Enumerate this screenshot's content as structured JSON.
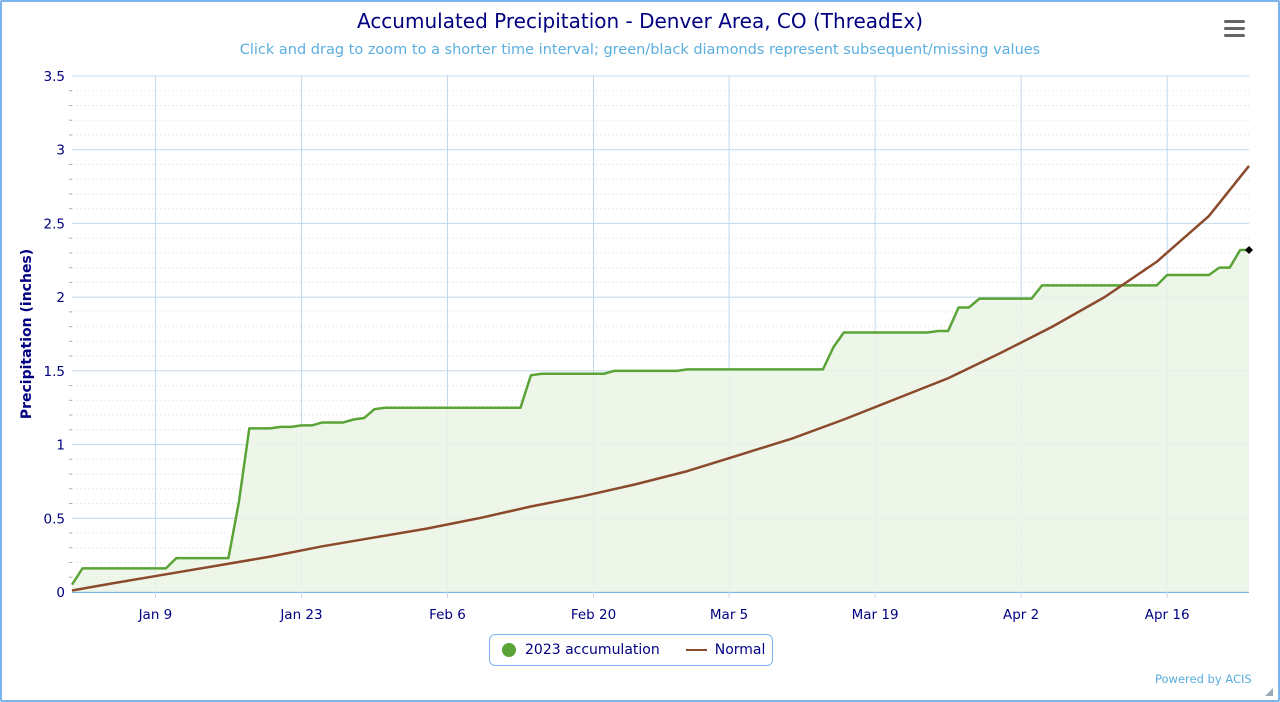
{
  "chart": {
    "title": "Accumulated Precipitation - Denver Area, CO (ThreadEx)",
    "subtitle": "Click and drag to zoom to a shorter time interval; green/black diamonds represent subsequent/missing values",
    "menu_icon": "hamburger-icon",
    "credits": "Powered by ACIS",
    "colors": {
      "accumulation_line": "#5aa437",
      "accumulation_fill": "#ebf4e6",
      "normal_line": "#8b4a2b",
      "grid_major": "#c0d8ec",
      "grid_minor": "#dddddd",
      "axis_text": "#000080",
      "frame": "#7cb5ec"
    },
    "legend": {
      "items": [
        {
          "label": "2023 accumulation",
          "symbol": "dot",
          "color": "#5aa437"
        },
        {
          "label": "Normal",
          "symbol": "line",
          "color": "#8b4a2b"
        }
      ]
    }
  },
  "chart_data": {
    "type": "area",
    "title": "Accumulated Precipitation - Denver Area, CO (ThreadEx)",
    "subtitle": "Click and drag to zoom to a shorter time interval; green/black diamonds represent subsequent/missing values",
    "xlabel": "",
    "ylabel": "Precipitation (inches)",
    "ylim": [
      0,
      3.5
    ],
    "yticks": [
      0,
      0.5,
      1,
      1.5,
      2,
      2.5,
      3,
      3.5
    ],
    "ytick_labels": [
      "0",
      "0.5",
      "1",
      "1.5",
      "2",
      "2.5",
      "3",
      "3.5"
    ],
    "xticks": [
      "Jan 9",
      "Jan 23",
      "Feb 6",
      "Feb 20",
      "Mar 5",
      "Mar 19",
      "Apr 2",
      "Apr 16"
    ],
    "xtick_day_of_year": [
      9,
      23,
      37,
      51,
      64,
      78,
      92,
      106
    ],
    "xlim_day_of_year": [
      1,
      113
    ],
    "grid": {
      "major": true,
      "minor_y_dotted": true,
      "vertical_at_ticks": true
    },
    "legend_position": "bottom-center",
    "series": [
      {
        "name": "2023 accumulation",
        "type": "area-line",
        "note": "final point marked with black diamond (missing value)",
        "points": [
          [
            1,
            0.05
          ],
          [
            2,
            0.16
          ],
          [
            9,
            0.16
          ],
          [
            10,
            0.16
          ],
          [
            11,
            0.23
          ],
          [
            16,
            0.23
          ],
          [
            17,
            0.61
          ],
          [
            18,
            1.11
          ],
          [
            20,
            1.11
          ],
          [
            21,
            1.12
          ],
          [
            22,
            1.12
          ],
          [
            23,
            1.13
          ],
          [
            24,
            1.13
          ],
          [
            25,
            1.15
          ],
          [
            27,
            1.15
          ],
          [
            28,
            1.17
          ],
          [
            29,
            1.18
          ],
          [
            30,
            1.24
          ],
          [
            31,
            1.25
          ],
          [
            44,
            1.25
          ],
          [
            45,
            1.47
          ],
          [
            46,
            1.48
          ],
          [
            51,
            1.48
          ],
          [
            52,
            1.48
          ],
          [
            53,
            1.5
          ],
          [
            59,
            1.5
          ],
          [
            60,
            1.51
          ],
          [
            73,
            1.51
          ],
          [
            74,
            1.66
          ],
          [
            75,
            1.76
          ],
          [
            83,
            1.76
          ],
          [
            84,
            1.77
          ],
          [
            85,
            1.77
          ],
          [
            86,
            1.93
          ],
          [
            87,
            1.93
          ],
          [
            88,
            1.99
          ],
          [
            93,
            1.99
          ],
          [
            94,
            2.08
          ],
          [
            105,
            2.08
          ],
          [
            106,
            2.15
          ],
          [
            110,
            2.15
          ],
          [
            111,
            2.2
          ],
          [
            112,
            2.2
          ],
          [
            113,
            2.32
          ],
          [
            114,
            2.32
          ]
        ]
      },
      {
        "name": "Normal",
        "type": "line",
        "points": [
          [
            1,
            0.01
          ],
          [
            5,
            0.06
          ],
          [
            10,
            0.12
          ],
          [
            15,
            0.18
          ],
          [
            20,
            0.24
          ],
          [
            25,
            0.31
          ],
          [
            30,
            0.37
          ],
          [
            35,
            0.43
          ],
          [
            40,
            0.5
          ],
          [
            45,
            0.58
          ],
          [
            50,
            0.65
          ],
          [
            55,
            0.73
          ],
          [
            60,
            0.82
          ],
          [
            65,
            0.93
          ],
          [
            70,
            1.04
          ],
          [
            75,
            1.17
          ],
          [
            80,
            1.31
          ],
          [
            85,
            1.45
          ],
          [
            90,
            1.62
          ],
          [
            95,
            1.8
          ],
          [
            100,
            2.0
          ],
          [
            105,
            2.24
          ],
          [
            110,
            2.55
          ],
          [
            114,
            2.89
          ]
        ]
      }
    ]
  }
}
